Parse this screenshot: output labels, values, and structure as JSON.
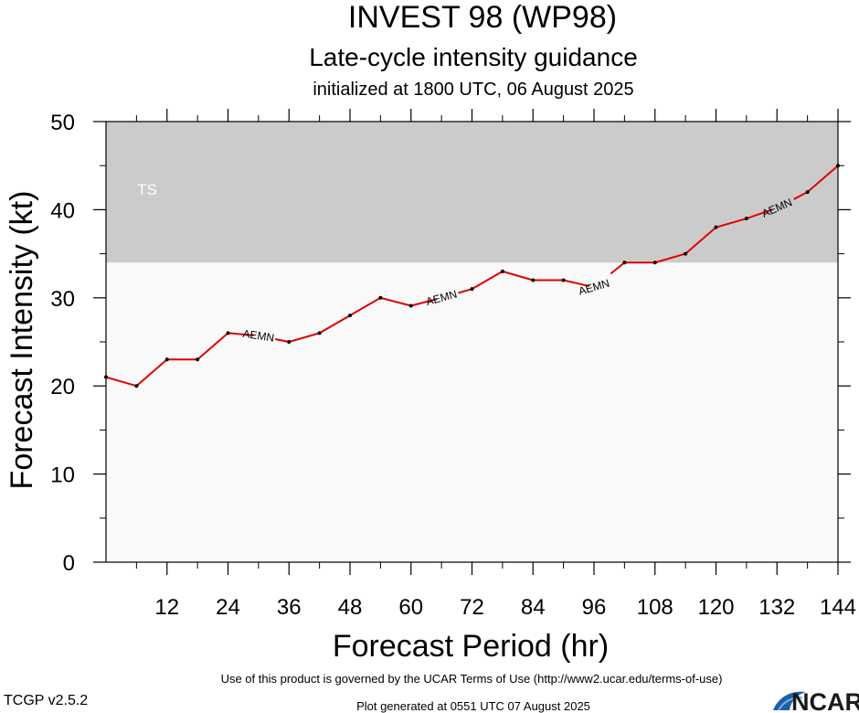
{
  "chart_data": {
    "type": "line",
    "title": "INVEST 98 (WP98)",
    "subtitle": "Late-cycle intensity guidance",
    "init_text": "initialized at 1800 UTC, 06 August 2025",
    "xlabel": "Forecast Period (hr)",
    "ylabel": "Forecast Intensity (kt)",
    "xlim": [
      0,
      144
    ],
    "ylim": [
      0,
      50
    ],
    "xticks": [
      12,
      24,
      36,
      48,
      60,
      72,
      84,
      96,
      108,
      120,
      132,
      144
    ],
    "yticks": [
      0,
      10,
      20,
      30,
      40,
      50
    ],
    "bands": [
      {
        "label": "TS",
        "from": 34,
        "to": 50,
        "color": "#cbcbcb"
      }
    ],
    "below_band_color": "#f9f9f9",
    "series": [
      {
        "name": "AEMN",
        "color": "#e00000",
        "x": [
          0,
          6,
          12,
          18,
          24,
          30,
          36,
          42,
          48,
          54,
          60,
          66,
          72,
          78,
          84,
          90,
          96,
          102,
          108,
          114,
          120,
          126,
          132,
          138,
          144
        ],
        "values": [
          21,
          20,
          23,
          23,
          26,
          25.7,
          25,
          26,
          28,
          30,
          29.1,
          30,
          31,
          33,
          32,
          32,
          31.2,
          34,
          34,
          35,
          38,
          39,
          40.2,
          42,
          45
        ],
        "label_at_x": [
          30,
          66,
          96,
          132
        ]
      }
    ]
  },
  "footer": {
    "terms": "Use of this product is governed by the UCAR Terms of Use (http://www2.ucar.edu/terms-of-use)",
    "generated": "Plot generated at 0551 UTC   07 August 2025",
    "version": "TCGP v2.5.2",
    "logo_text": "NCAR"
  }
}
